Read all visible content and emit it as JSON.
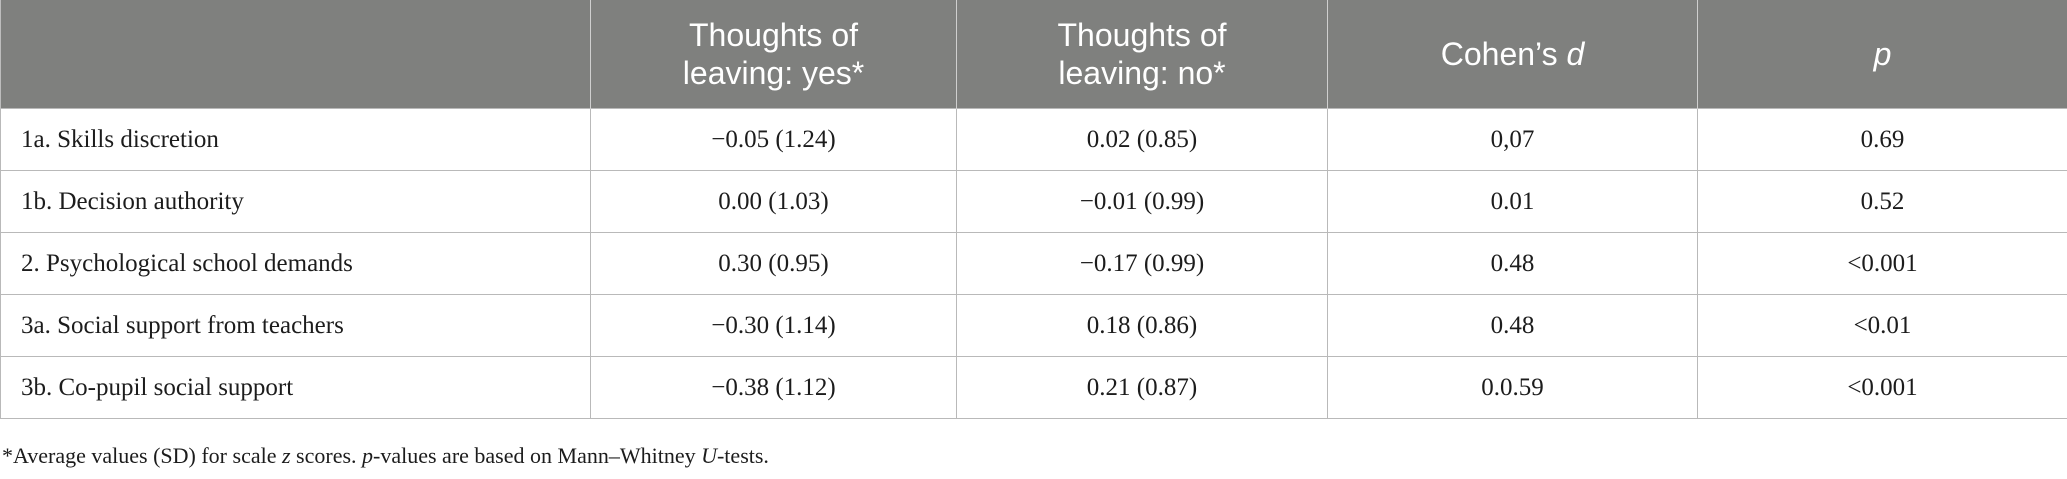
{
  "table": {
    "header": {
      "col0": "",
      "col1_line1": "Thoughts of",
      "col1_line2": "leaving: yes*",
      "col2_line1": "Thoughts of",
      "col2_line2": "leaving: no*",
      "col3_prefix": "Cohen’s ",
      "col3_italic": "d",
      "col4_italic": "p"
    },
    "rows": [
      {
        "label": "1a. Skills discretion",
        "yes": "−0.05 (1.24)",
        "no": "0.02 (0.85)",
        "d": "0,07",
        "p": "0.69"
      },
      {
        "label": "1b. Decision authority",
        "yes": "0.00 (1.03)",
        "no": "−0.01 (0.99)",
        "d": "0.01",
        "p": "0.52"
      },
      {
        "label": "2. Psychological school demands",
        "yes": "0.30 (0.95)",
        "no": "−0.17 (0.99)",
        "d": "0.48",
        "p": "<0.001"
      },
      {
        "label": "3a. Social support from teachers",
        "yes": "−0.30 (1.14)",
        "no": "0.18 (0.86)",
        "d": "0.48",
        "p": "<0.01"
      },
      {
        "label": "3b. Co-pupil social support",
        "yes": "−0.38 (1.12)",
        "no": "0.21 (0.87)",
        "d": "0.0.59",
        "p": "<0.001"
      }
    ]
  },
  "footnote": {
    "part1": "*Average values (SD) for scale ",
    "italic1": "z",
    "part2": " scores. ",
    "italic2": "p",
    "part3": "-values are based on Mann–Whitney ",
    "italic3": "U",
    "part4": "-tests."
  }
}
